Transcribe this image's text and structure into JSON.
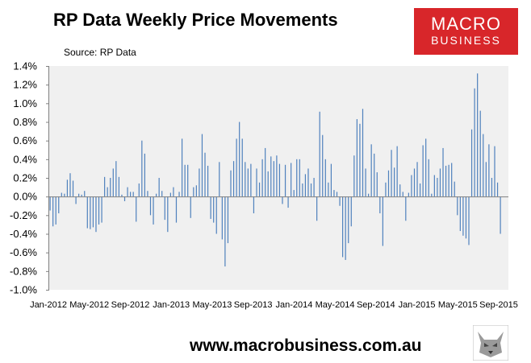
{
  "header": {
    "title": "RP Data Weekly Price Movements",
    "source": "Source: RP Data"
  },
  "logo": {
    "line1": "MACRO",
    "line2": "BUSINESS"
  },
  "footer": {
    "url": "www.macrobusiness.com.au"
  },
  "colors": {
    "bar": "#4f81bd",
    "plot_bg": "#f0f0f0",
    "logo_bg": "#d8262a"
  },
  "chart_data": {
    "type": "bar",
    "title": "RP Data Weekly Price Movements",
    "ylim": [
      -1.0,
      1.4
    ],
    "yticks": [
      "-1.0%",
      "-0.8%",
      "-0.6%",
      "-0.4%",
      "-0.2%",
      "0.0%",
      "0.2%",
      "0.4%",
      "0.6%",
      "0.8%",
      "1.0%",
      "1.2%",
      "1.4%"
    ],
    "xticks": [
      "Jan-2012",
      "May-2012",
      "Sep-2012",
      "Jan-2013",
      "May-2013",
      "Sep-2013",
      "Jan-2014",
      "May-2014",
      "Sep-2014",
      "Jan-2015",
      "May-2015",
      "Sep-2015"
    ],
    "grid": false,
    "legend": "none",
    "unit": "%",
    "values": [
      -0.15,
      -0.32,
      -0.3,
      -0.18,
      0.04,
      0.03,
      0.18,
      0.25,
      0.17,
      -0.08,
      0.03,
      0.02,
      0.06,
      -0.34,
      -0.35,
      -0.33,
      -0.38,
      -0.3,
      -0.28,
      0.21,
      0.1,
      0.2,
      0.3,
      0.38,
      0.21,
      0.02,
      -0.05,
      0.1,
      0.05,
      0.05,
      -0.27,
      0.14,
      0.6,
      0.46,
      0.06,
      -0.2,
      -0.3,
      0.03,
      0.2,
      0.06,
      -0.25,
      -0.38,
      0.04,
      0.1,
      -0.28,
      0.05,
      0.62,
      0.34,
      0.34,
      -0.23,
      0.1,
      0.12,
      0.3,
      0.67,
      0.47,
      0.33,
      -0.24,
      -0.28,
      -0.4,
      0.37,
      -0.46,
      -0.75,
      -0.5,
      0.28,
      0.38,
      0.62,
      0.8,
      0.62,
      0.37,
      0.3,
      0.35,
      -0.18,
      0.3,
      0.15,
      0.4,
      0.52,
      0.27,
      0.43,
      0.38,
      0.44,
      0.35,
      -0.08,
      0.34,
      -0.12,
      0.36,
      0.07,
      0.4,
      0.4,
      0.14,
      0.24,
      0.3,
      0.14,
      0.2,
      -0.26,
      0.91,
      0.66,
      0.4,
      0.15,
      0.35,
      0.07,
      0.05,
      -0.1,
      -0.65,
      -0.68,
      -0.5,
      -0.32,
      0.44,
      0.83,
      0.78,
      0.94,
      0.3,
      0.03,
      0.56,
      0.46,
      0.26,
      -0.18,
      -0.53,
      0.15,
      0.28,
      0.5,
      0.31,
      0.54,
      0.13,
      0.05,
      -0.26,
      0.04,
      0.23,
      0.3,
      0.37,
      0.14,
      0.55,
      0.62,
      0.4,
      0.03,
      0.23,
      0.2,
      0.3,
      0.52,
      0.33,
      0.34,
      0.36,
      0.16,
      -0.2,
      -0.37,
      -0.42,
      -0.45,
      -0.52,
      0.72,
      1.16,
      1.32,
      0.92,
      0.67,
      0.37,
      0.56,
      0.2,
      0.54,
      0.15,
      -0.4
    ]
  }
}
